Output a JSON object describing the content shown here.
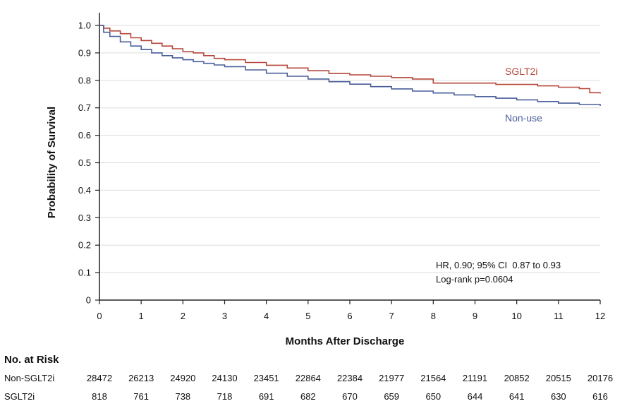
{
  "chart_data": {
    "type": "line",
    "xlabel": "Months After Discharge",
    "ylabel": "Probability of Survival",
    "xlim": [
      0,
      12
    ],
    "ylim": [
      0,
      1.0
    ],
    "x_ticks": [
      "0",
      "1",
      "2",
      "3",
      "4",
      "5",
      "6",
      "7",
      "8",
      "9",
      "10",
      "11",
      "12"
    ],
    "y_ticks": [
      "0",
      "0.1",
      "0.2",
      "0.3",
      "0.4",
      "0.5",
      "0.6",
      "0.7",
      "0.8",
      "0.9",
      "1.0"
    ],
    "grid": "horizontal",
    "step": true,
    "series": [
      {
        "name": "SGLT2i",
        "color": "#b5473a",
        "label_color": "#b5473a",
        "x": [
          0,
          0.1,
          0.25,
          0.5,
          0.75,
          1,
          1.25,
          1.5,
          1.75,
          2,
          2.25,
          2.5,
          2.75,
          3,
          3.5,
          4,
          4.5,
          5,
          5.5,
          6,
          6.5,
          7,
          7.5,
          8,
          8.5,
          9,
          9.5,
          10,
          10.5,
          11,
          11.5,
          11.75,
          12
        ],
        "values": [
          1.0,
          0.99,
          0.98,
          0.97,
          0.955,
          0.945,
          0.935,
          0.925,
          0.915,
          0.905,
          0.9,
          0.89,
          0.88,
          0.875,
          0.865,
          0.855,
          0.845,
          0.835,
          0.825,
          0.82,
          0.815,
          0.81,
          0.805,
          0.79,
          0.79,
          0.79,
          0.785,
          0.785,
          0.78,
          0.775,
          0.77,
          0.755,
          0.752
        ]
      },
      {
        "name": "Non-use",
        "color": "#4a5e9a",
        "label_color": "#4a5e9a",
        "x": [
          0,
          0.1,
          0.25,
          0.5,
          0.75,
          1,
          1.25,
          1.5,
          1.75,
          2,
          2.25,
          2.5,
          2.75,
          3,
          3.5,
          4,
          4.5,
          5,
          5.5,
          6,
          6.5,
          7,
          7.5,
          8,
          8.5,
          9,
          9.5,
          10,
          10.5,
          11,
          11.5,
          12
        ],
        "values": [
          1.0,
          0.975,
          0.96,
          0.94,
          0.925,
          0.912,
          0.9,
          0.89,
          0.882,
          0.875,
          0.868,
          0.862,
          0.856,
          0.85,
          0.838,
          0.826,
          0.815,
          0.805,
          0.795,
          0.786,
          0.777,
          0.769,
          0.761,
          0.754,
          0.747,
          0.741,
          0.735,
          0.729,
          0.723,
          0.717,
          0.712,
          0.707
        ]
      }
    ],
    "annotations": [
      "HR, 0.90; 95% CI  0.87 to 0.93",
      "Log-rank p=0.0604"
    ]
  },
  "risk_table": {
    "title": "No. at Risk",
    "rows": [
      {
        "label": "Non-SGLT2i",
        "values": [
          "28472",
          "26213",
          "24920",
          "24130",
          "23451",
          "22864",
          "22384",
          "21977",
          "21564",
          "21191",
          "20852",
          "20515",
          "20176"
        ]
      },
      {
        "label": "SGLT2i",
        "values": [
          "818",
          "761",
          "738",
          "718",
          "691",
          "682",
          "670",
          "659",
          "650",
          "644",
          "641",
          "630",
          "616"
        ]
      }
    ]
  }
}
